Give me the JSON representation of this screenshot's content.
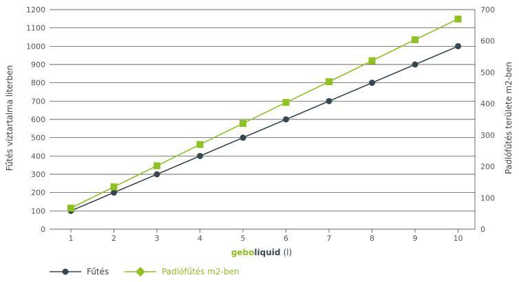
{
  "chart_data": {
    "type": "line",
    "categories": [
      "1",
      "2",
      "3",
      "4",
      "5",
      "6",
      "7",
      "8",
      "9",
      "10"
    ],
    "xlabel": {
      "brand": "gebo",
      "product": "liquid",
      "unit": "(l)"
    },
    "ylabel_left": "Fűtés víztartalma literben",
    "ylabel_right": "Padlófűtés területe m2-ben",
    "ylim_left": [
      0,
      1200
    ],
    "yticks_left": [
      0,
      100,
      200,
      300,
      400,
      500,
      600,
      700,
      800,
      900,
      1000,
      1100,
      1200
    ],
    "ylim_right": [
      0,
      700
    ],
    "yticks_right": [
      0,
      100,
      200,
      300,
      400,
      500,
      600,
      700
    ],
    "grid": true,
    "series": [
      {
        "name": "Fűtés",
        "axis": "left",
        "marker": "circle",
        "color": "#37474f",
        "values": [
          100,
          200,
          300,
          400,
          500,
          600,
          700,
          800,
          900,
          1000
        ]
      },
      {
        "name": "Padlófűtés m2-ben",
        "axis": "right",
        "marker": "square",
        "color": "#8dc21f",
        "values": [
          67,
          135,
          202,
          270,
          337,
          404,
          470,
          537,
          604,
          670
        ]
      }
    ],
    "legend_position": "bottom-left"
  }
}
